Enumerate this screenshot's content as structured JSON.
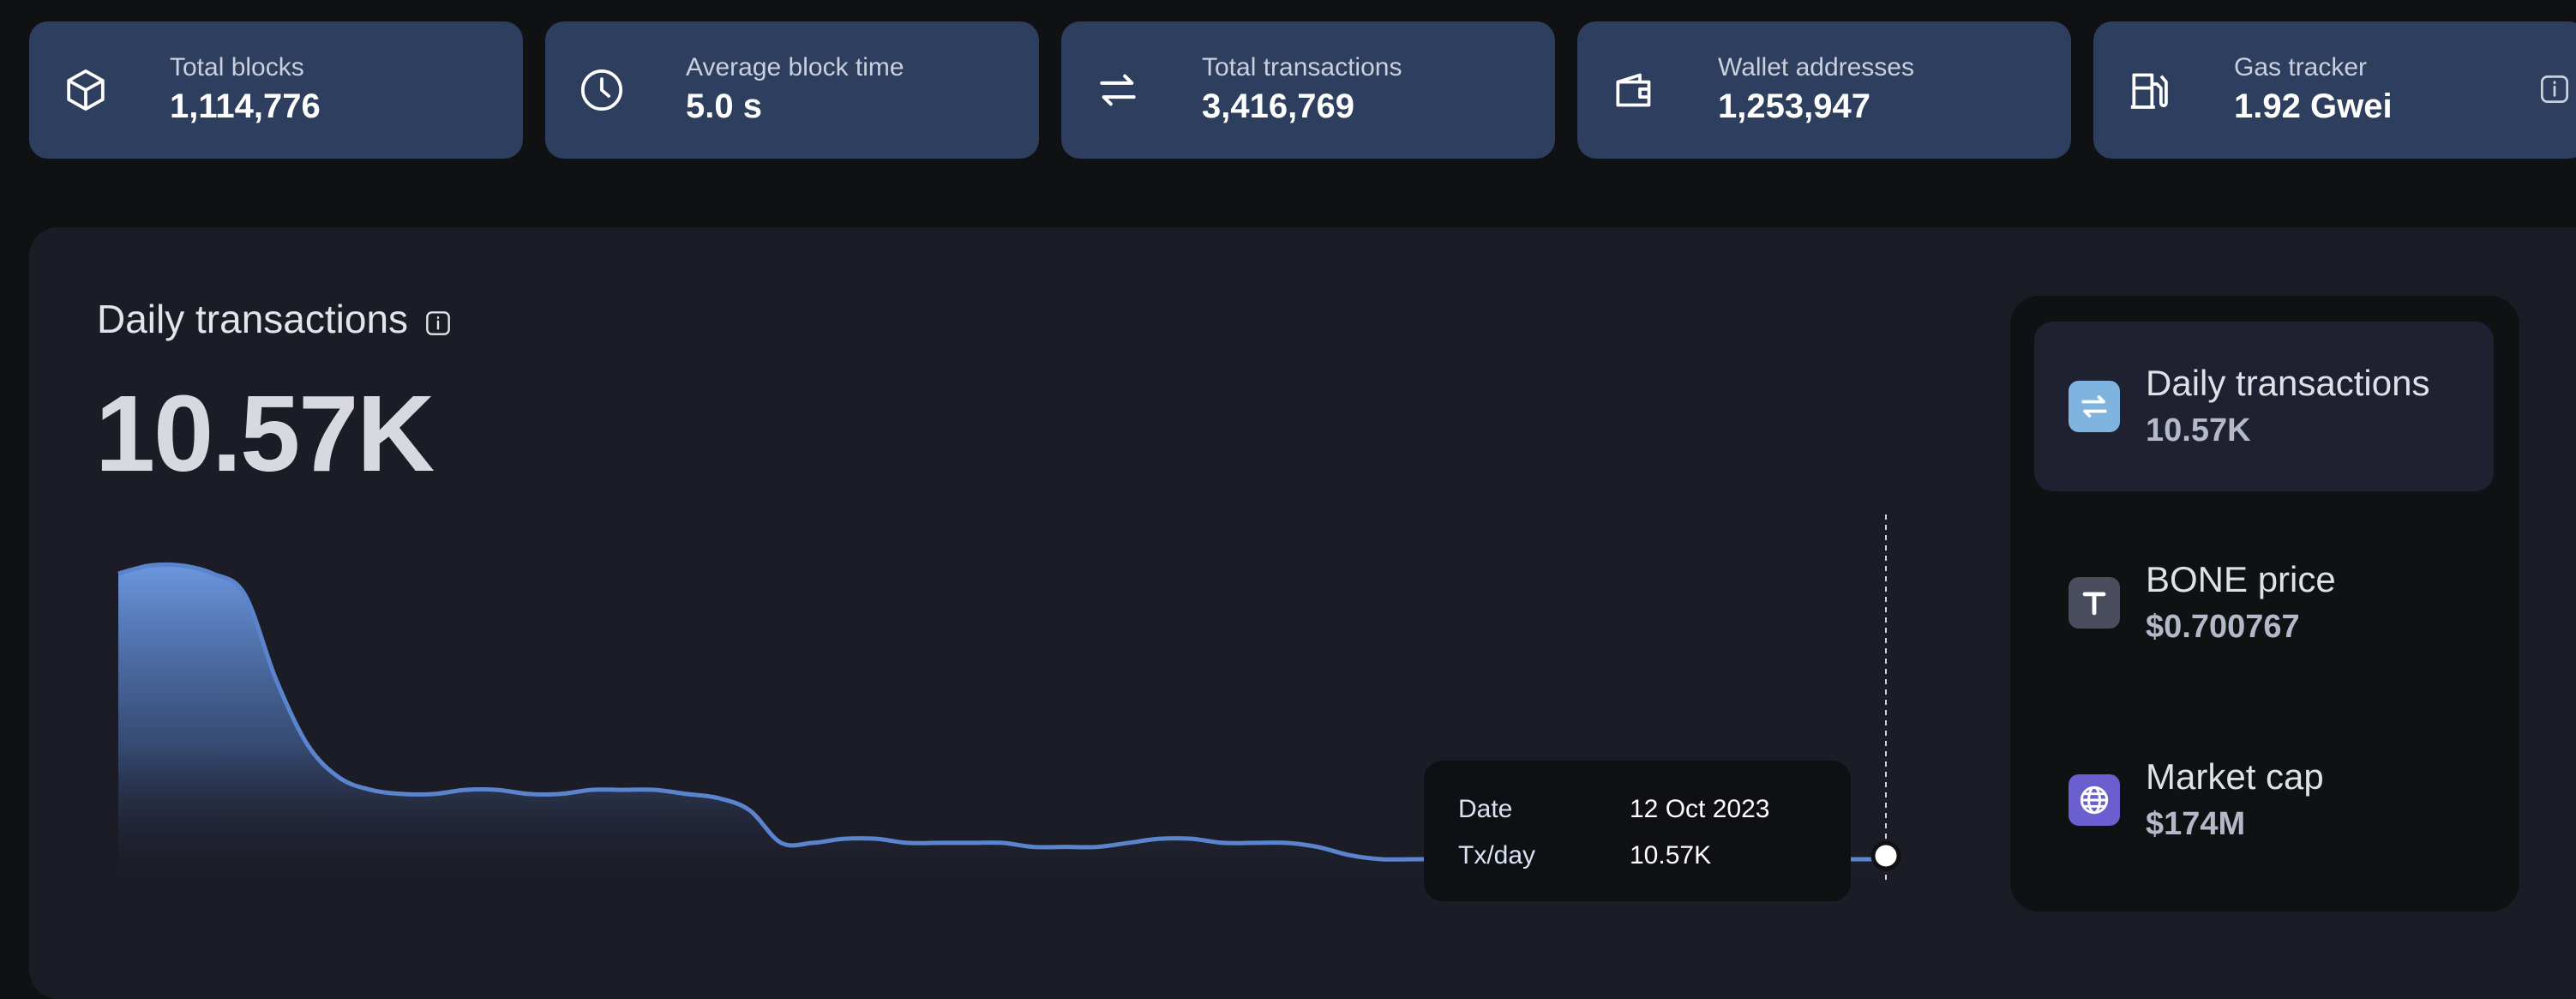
{
  "stats": [
    {
      "label": "Total blocks",
      "value": "1,114,776",
      "icon": "cube-icon"
    },
    {
      "label": "Average block time",
      "value": "5.0 s",
      "icon": "clock-icon"
    },
    {
      "label": "Total transactions",
      "value": "3,416,769",
      "icon": "transfer-arrows-icon"
    },
    {
      "label": "Wallet addresses",
      "value": "1,253,947",
      "icon": "wallet-icon"
    },
    {
      "label": "Gas tracker",
      "value": "1.92 Gwei",
      "icon": "gas-pump-icon"
    }
  ],
  "chart_section": {
    "title": "Daily transactions",
    "value": "10.57K"
  },
  "tooltip": {
    "date_label": "Date",
    "date_value": "12 Oct 2023",
    "txday_label": "Tx/day",
    "txday_value": "10.57K"
  },
  "side_items": [
    {
      "label": "Daily transactions",
      "value": "10.57K",
      "icon": "transfer-arrows-icon",
      "icon_bg": "#7fb3e0",
      "active": true
    },
    {
      "label": "BONE price",
      "value": "$0.700767",
      "icon": "token-t-icon",
      "icon_bg": "#4a4d5e",
      "active": false
    },
    {
      "label": "Market cap",
      "value": "$174M",
      "icon": "globe-icon",
      "icon_bg": "#6b5fcf",
      "active": false
    }
  ],
  "colors": {
    "card_bg": "#2e3e5e",
    "panel_bg": "#1b1c26",
    "line": "#5b84cf",
    "page_bg": "#101112"
  },
  "chart_data": {
    "type": "area",
    "title": "",
    "xlabel": "",
    "ylabel": "",
    "grid": false,
    "legend": "none",
    "ylim": [
      0,
      82
    ],
    "values": [
      78,
      80,
      80,
      78,
      73,
      52,
      36,
      28,
      25,
      24,
      24,
      25,
      25,
      24,
      24,
      25,
      25,
      25,
      24,
      23,
      20,
      12,
      12,
      13,
      13,
      12,
      12,
      12,
      12,
      11,
      11,
      11,
      12,
      13,
      13,
      12,
      12,
      12,
      11,
      9,
      8,
      8,
      8,
      8,
      8,
      8,
      8,
      8,
      8,
      8,
      8,
      8,
      8,
      8,
      8,
      8,
      8
    ],
    "highlight": {
      "date": "12 Oct 2023",
      "value": "10.57K"
    }
  }
}
